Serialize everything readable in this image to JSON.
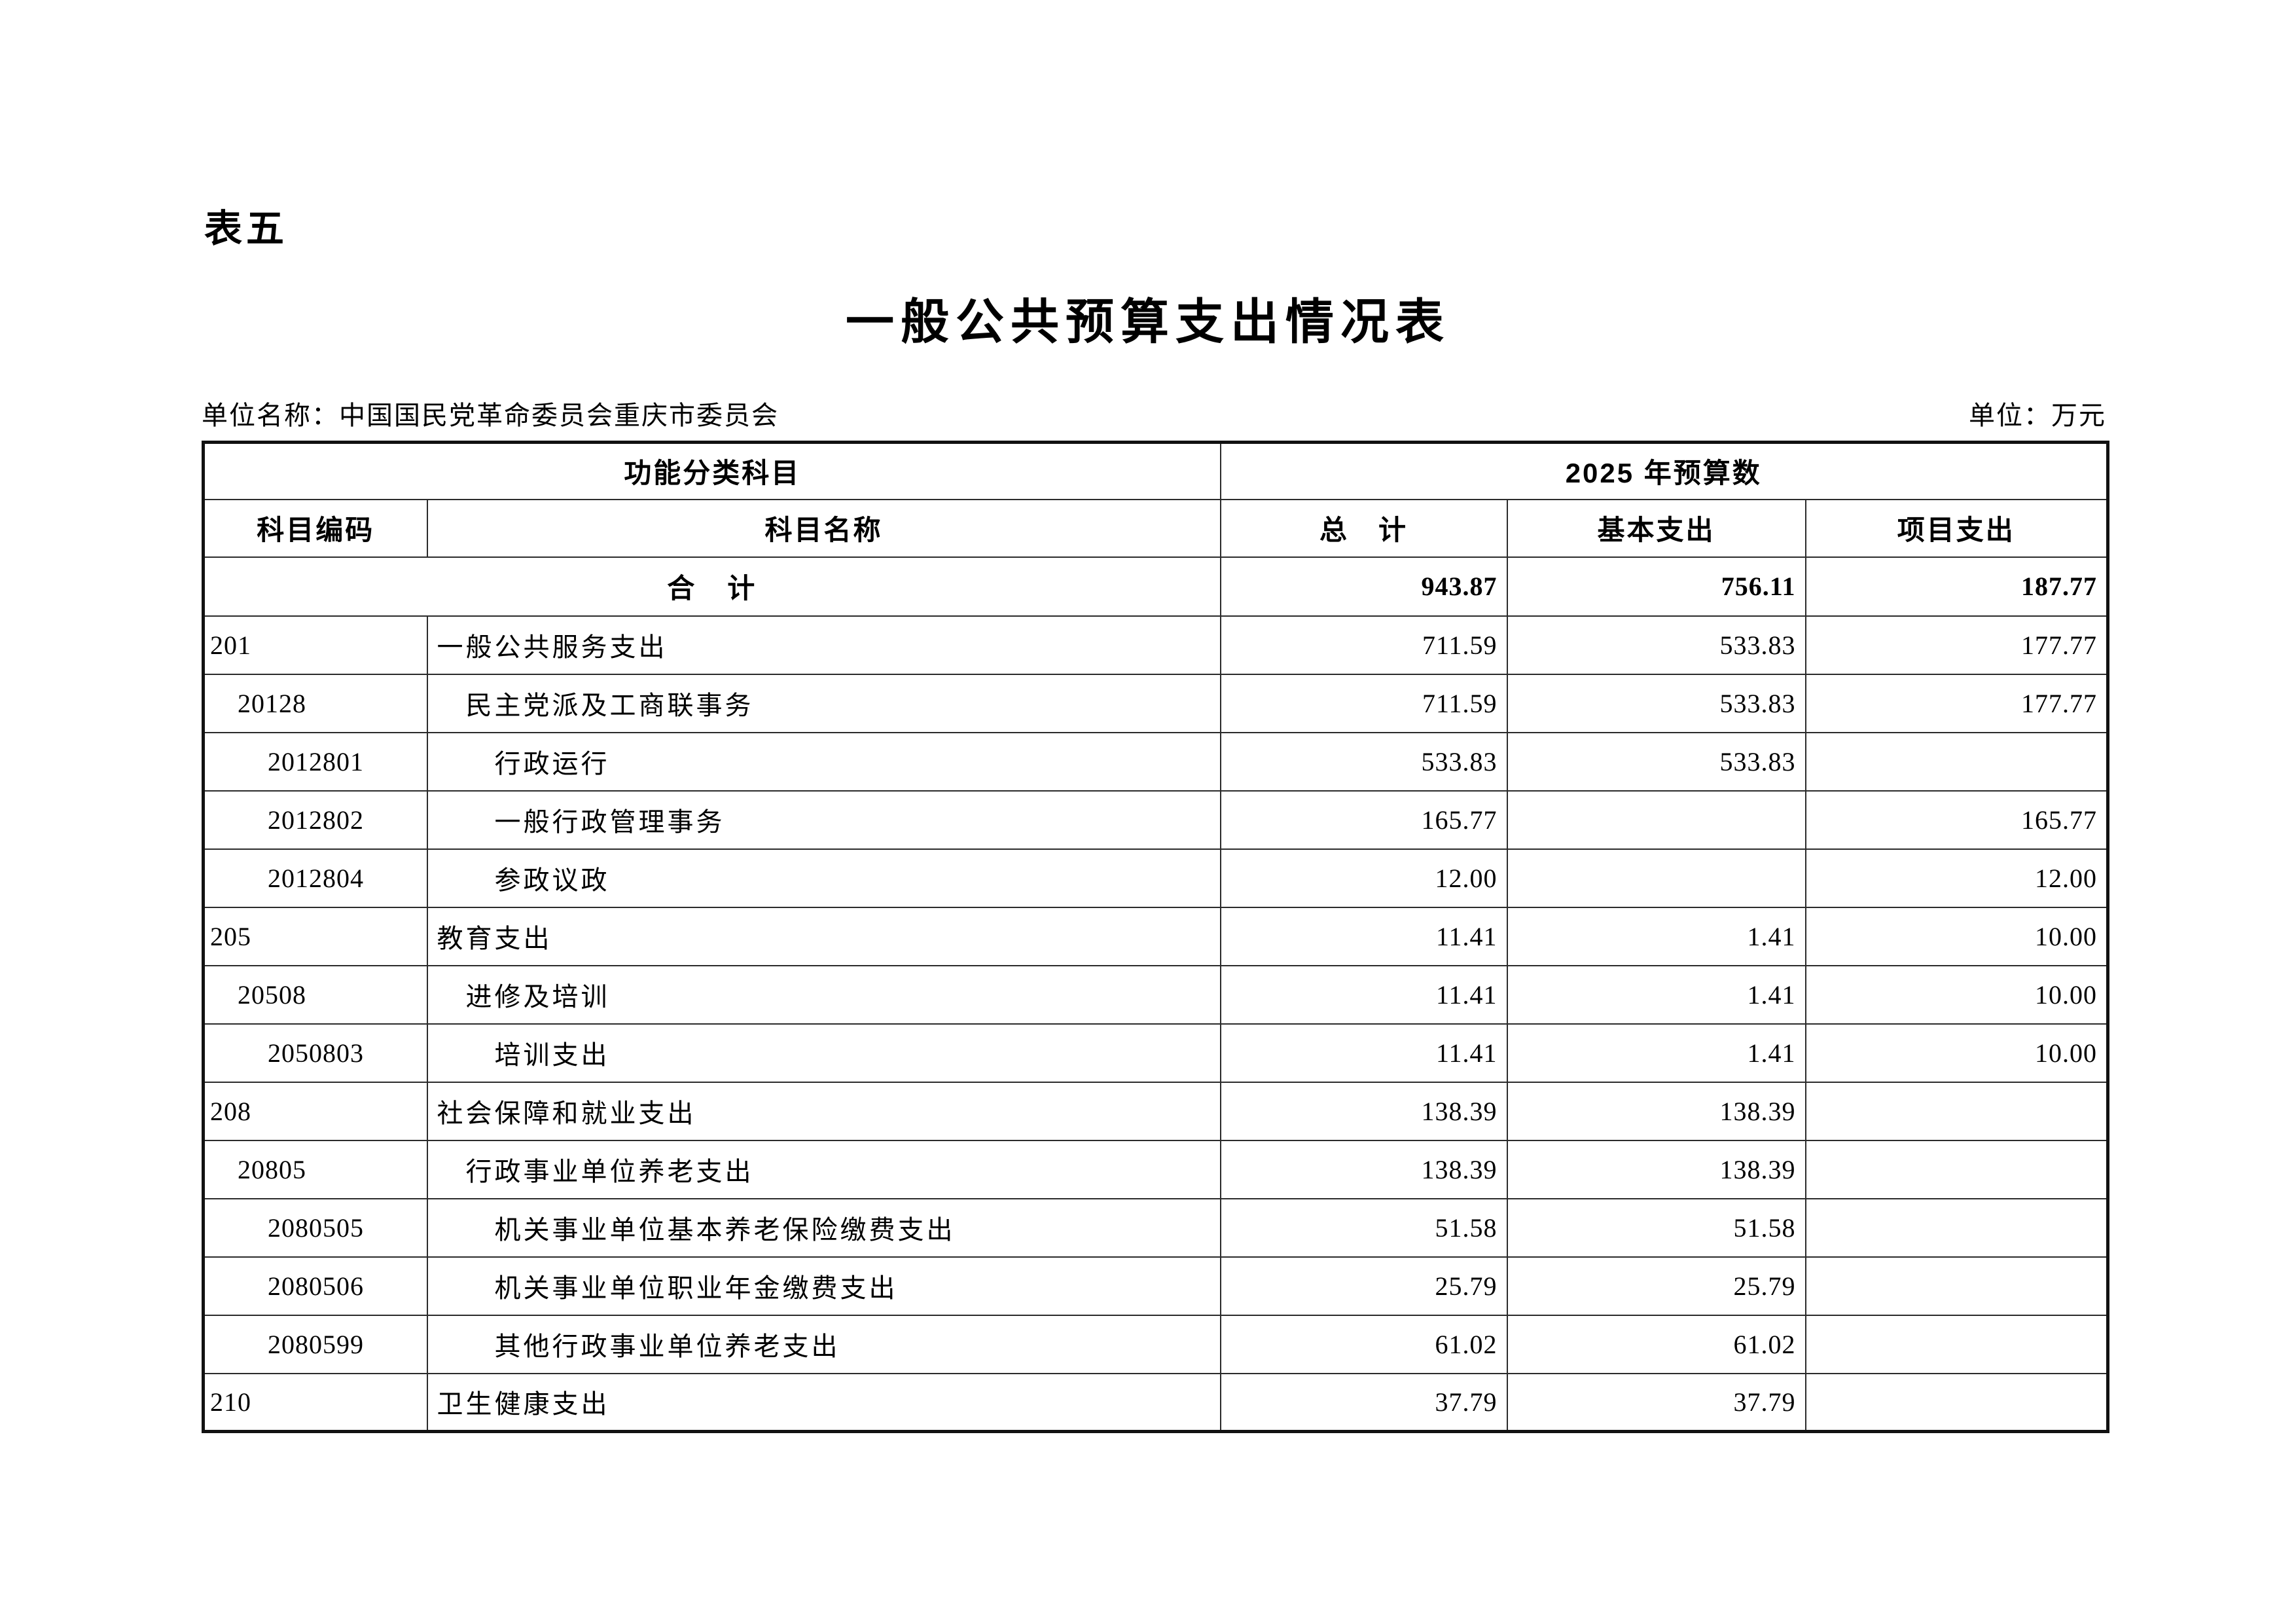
{
  "page": {
    "table_label": "表五",
    "title": "一般公共预算支出情况表",
    "unit_name": "单位名称：中国国民党革命委员会重庆市委员会",
    "unit": "单位：万元"
  },
  "table": {
    "header": {
      "functional_category": "功能分类科目",
      "budget_year": "2025 年预算数",
      "code": "科目编码",
      "name": "科目名称",
      "total": "总　计",
      "basic": "基本支出",
      "project": "项目支出"
    },
    "total_row": {
      "name": "合　计",
      "total": "943.87",
      "basic": "756.11",
      "project": "187.77"
    },
    "rows": [
      {
        "code": "201",
        "name": "一般公共服务支出",
        "level": 1,
        "total": "711.59",
        "basic": "533.83",
        "project": "177.77"
      },
      {
        "code": "20128",
        "name": "民主党派及工商联事务",
        "level": 2,
        "total": "711.59",
        "basic": "533.83",
        "project": "177.77"
      },
      {
        "code": "2012801",
        "name": "行政运行",
        "level": 3,
        "total": "533.83",
        "basic": "533.83",
        "project": ""
      },
      {
        "code": "2012802",
        "name": "一般行政管理事务",
        "level": 3,
        "total": "165.77",
        "basic": "",
        "project": "165.77"
      },
      {
        "code": "2012804",
        "name": "参政议政",
        "level": 3,
        "total": "12.00",
        "basic": "",
        "project": "12.00"
      },
      {
        "code": "205",
        "name": "教育支出",
        "level": 1,
        "total": "11.41",
        "basic": "1.41",
        "project": "10.00"
      },
      {
        "code": "20508",
        "name": "进修及培训",
        "level": 2,
        "total": "11.41",
        "basic": "1.41",
        "project": "10.00"
      },
      {
        "code": "2050803",
        "name": "培训支出",
        "level": 3,
        "total": "11.41",
        "basic": "1.41",
        "project": "10.00"
      },
      {
        "code": "208",
        "name": "社会保障和就业支出",
        "level": 1,
        "total": "138.39",
        "basic": "138.39",
        "project": ""
      },
      {
        "code": "20805",
        "name": "行政事业单位养老支出",
        "level": 2,
        "total": "138.39",
        "basic": "138.39",
        "project": ""
      },
      {
        "code": "2080505",
        "name": "机关事业单位基本养老保险缴费支出",
        "level": 3,
        "total": "51.58",
        "basic": "51.58",
        "project": ""
      },
      {
        "code": "2080506",
        "name": "机关事业单位职业年金缴费支出",
        "level": 3,
        "total": "25.79",
        "basic": "25.79",
        "project": ""
      },
      {
        "code": "2080599",
        "name": "其他行政事业单位养老支出",
        "level": 3,
        "total": "61.02",
        "basic": "61.02",
        "project": ""
      },
      {
        "code": "210",
        "name": "卫生健康支出",
        "level": 1,
        "total": "37.79",
        "basic": "37.79",
        "project": ""
      }
    ]
  }
}
